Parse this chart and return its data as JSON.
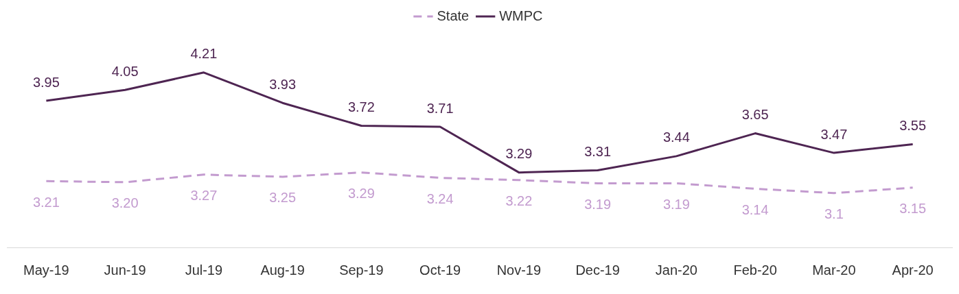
{
  "chart_data": {
    "type": "line",
    "categories": [
      "May-19",
      "Jun-19",
      "Jul-19",
      "Aug-19",
      "Sep-19",
      "Oct-19",
      "Nov-19",
      "Dec-19",
      "Jan-20",
      "Feb-20",
      "Mar-20",
      "Apr-20"
    ],
    "series": [
      {
        "name": "State",
        "color": "#c39bcf",
        "line_style": "dashed",
        "values": [
          3.21,
          3.2,
          3.27,
          3.25,
          3.29,
          3.24,
          3.22,
          3.19,
          3.19,
          3.14,
          3.1,
          3.15
        ],
        "value_labels": [
          "3.21",
          "3.20",
          "3.27",
          "3.25",
          "3.29",
          "3.24",
          "3.22",
          "3.19",
          "3.19",
          "3.14",
          "3.1",
          "3.15"
        ]
      },
      {
        "name": "WMPC",
        "color": "#4e2552",
        "line_style": "solid",
        "values": [
          3.95,
          4.05,
          4.21,
          3.93,
          3.72,
          3.71,
          3.29,
          3.31,
          3.44,
          3.65,
          3.47,
          3.55
        ],
        "value_labels": [
          "3.95",
          "4.05",
          "4.21",
          "3.93",
          "3.72",
          "3.71",
          "3.29",
          "3.31",
          "3.44",
          "3.65",
          "3.47",
          "3.55"
        ]
      }
    ],
    "legend": "top",
    "grid": false,
    "marker": "none"
  }
}
